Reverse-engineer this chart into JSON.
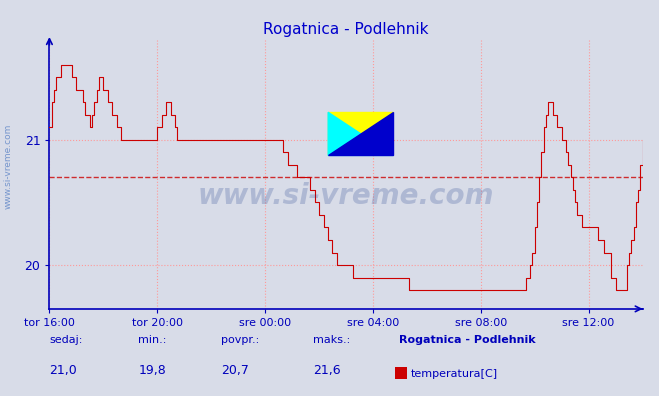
{
  "title": "Rogatnica - Podlehnik",
  "title_color": "#0000cc",
  "bg_color": "#d8dce8",
  "plot_bg_color": "#d8dce8",
  "line_color": "#cc0000",
  "grid_color": "#ff9999",
  "grid_linestyle": ":",
  "axis_color": "#0000bb",
  "avg_line_color": "#cc0000",
  "avg_value": 20.7,
  "ymin": 19.65,
  "ymax": 21.8,
  "yticks": [
    20,
    21
  ],
  "sedaj": "21,0",
  "min_val": "19,8",
  "povpr": "20,7",
  "maks": "21,6",
  "legend_label": "temperatura[C]",
  "legend_station": "Rogatnica - Podlehnik",
  "watermark_text": "www.si-vreme.com",
  "sidebar_text": "www.si-vreme.com",
  "xtick_labels": [
    "tor 16:00",
    "tor 20:00",
    "sre 00:00",
    "sre 04:00",
    "sre 08:00",
    "sre 12:00"
  ],
  "n_points": 265,
  "temperature_profile": [
    21.1,
    21.3,
    21.4,
    21.5,
    21.5,
    21.6,
    21.6,
    21.6,
    21.6,
    21.6,
    21.5,
    21.5,
    21.4,
    21.4,
    21.4,
    21.3,
    21.2,
    21.2,
    21.1,
    21.2,
    21.3,
    21.4,
    21.5,
    21.5,
    21.4,
    21.4,
    21.3,
    21.3,
    21.2,
    21.2,
    21.1,
    21.1,
    21.0,
    21.0,
    21.0,
    21.0,
    21.0,
    21.0,
    21.0,
    21.0,
    21.0,
    21.0,
    21.0,
    21.0,
    21.0,
    21.0,
    21.0,
    21.0,
    21.1,
    21.1,
    21.2,
    21.2,
    21.3,
    21.3,
    21.2,
    21.2,
    21.1,
    21.0,
    21.0,
    21.0,
    21.0,
    21.0,
    21.0,
    21.0,
    21.0,
    21.0,
    21.0,
    21.0,
    21.0,
    21.0,
    21.0,
    21.0,
    21.0,
    21.0,
    21.0,
    21.0,
    21.0,
    21.0,
    21.0,
    21.0,
    21.0,
    21.0,
    21.0,
    21.0,
    21.0,
    21.0,
    21.0,
    21.0,
    21.0,
    21.0,
    21.0,
    21.0,
    21.0,
    21.0,
    21.0,
    21.0,
    21.0,
    21.0,
    21.0,
    21.0,
    21.0,
    21.0,
    21.0,
    21.0,
    20.9,
    20.9,
    20.8,
    20.8,
    20.8,
    20.8,
    20.7,
    20.7,
    20.7,
    20.7,
    20.7,
    20.7,
    20.6,
    20.6,
    20.5,
    20.5,
    20.4,
    20.4,
    20.3,
    20.3,
    20.2,
    20.2,
    20.1,
    20.1,
    20.0,
    20.0,
    20.0,
    20.0,
    20.0,
    20.0,
    20.0,
    19.9,
    19.9,
    19.9,
    19.9,
    19.9,
    19.9,
    19.9,
    19.9,
    19.9,
    19.9,
    19.9,
    19.9,
    19.9,
    19.9,
    19.9,
    19.9,
    19.9,
    19.9,
    19.9,
    19.9,
    19.9,
    19.9,
    19.9,
    19.9,
    19.9,
    19.8,
    19.8,
    19.8,
    19.8,
    19.8,
    19.8,
    19.8,
    19.8,
    19.8,
    19.8,
    19.8,
    19.8,
    19.8,
    19.8,
    19.8,
    19.8,
    19.8,
    19.8,
    19.8,
    19.8,
    19.8,
    19.8,
    19.8,
    19.8,
    19.8,
    19.8,
    19.8,
    19.8,
    19.8,
    19.8,
    19.8,
    19.8,
    19.8,
    19.8,
    19.8,
    19.8,
    19.8,
    19.8,
    19.8,
    19.8,
    19.8,
    19.8,
    19.8,
    19.8,
    19.8,
    19.8,
    19.8,
    19.8,
    19.8,
    19.8,
    19.8,
    19.8,
    19.9,
    19.9,
    20.0,
    20.1,
    20.3,
    20.5,
    20.7,
    20.9,
    21.1,
    21.2,
    21.3,
    21.3,
    21.2,
    21.2,
    21.1,
    21.1,
    21.0,
    21.0,
    20.9,
    20.8,
    20.7,
    20.6,
    20.5,
    20.4,
    20.4,
    20.3,
    20.3,
    20.3,
    20.3,
    20.3,
    20.3,
    20.3,
    20.2,
    20.2,
    20.2,
    20.1,
    20.1,
    20.1,
    19.9,
    19.9,
    19.8,
    19.8,
    19.8,
    19.8,
    19.8,
    20.0,
    20.1,
    20.2,
    20.3,
    20.5,
    20.6,
    20.8,
    21.0,
    21.1
  ]
}
